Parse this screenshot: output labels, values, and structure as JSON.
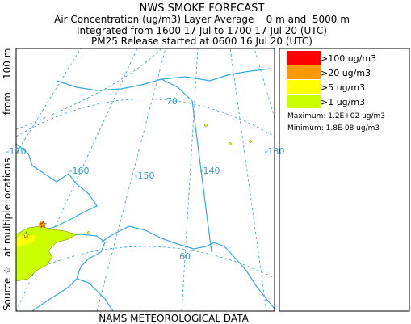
{
  "header": {
    "title": "NWS SMOKE FORECAST",
    "lines": [
      "Air Concentration (ug/m3) Layer Average    0 m and  5000 m",
      "Integrated from 1600 17 Jul to 1700 17 Jul 20 (UTC)",
      "PM25 Release started at 0600 16 Jul 20 (UTC)"
    ]
  },
  "side_label": [
    "Source ☆",
    "at multiple locations",
    "from",
    "100 m"
  ],
  "map": {
    "graticule_labels": [
      "-170",
      "-160",
      "-150",
      "-140",
      "-130",
      "70",
      "60"
    ]
  },
  "legend": {
    "items": [
      {
        "label": ">100 ug/m3",
        "color": "#ff0000"
      },
      {
        "label": ">20 ug/m3",
        "color": "#ff9900"
      },
      {
        "label": ">5 ug/m3",
        "color": "#ffff00"
      },
      {
        "label": ">1 ug/m3",
        "color": "#ccff00"
      }
    ],
    "maximum": "Maximum: 1.2E+02 ug/m3",
    "minimum": "Minimum: 1.8E-08 ug/m3"
  },
  "footer": "NAMS METEOROLOGICAL DATA"
}
